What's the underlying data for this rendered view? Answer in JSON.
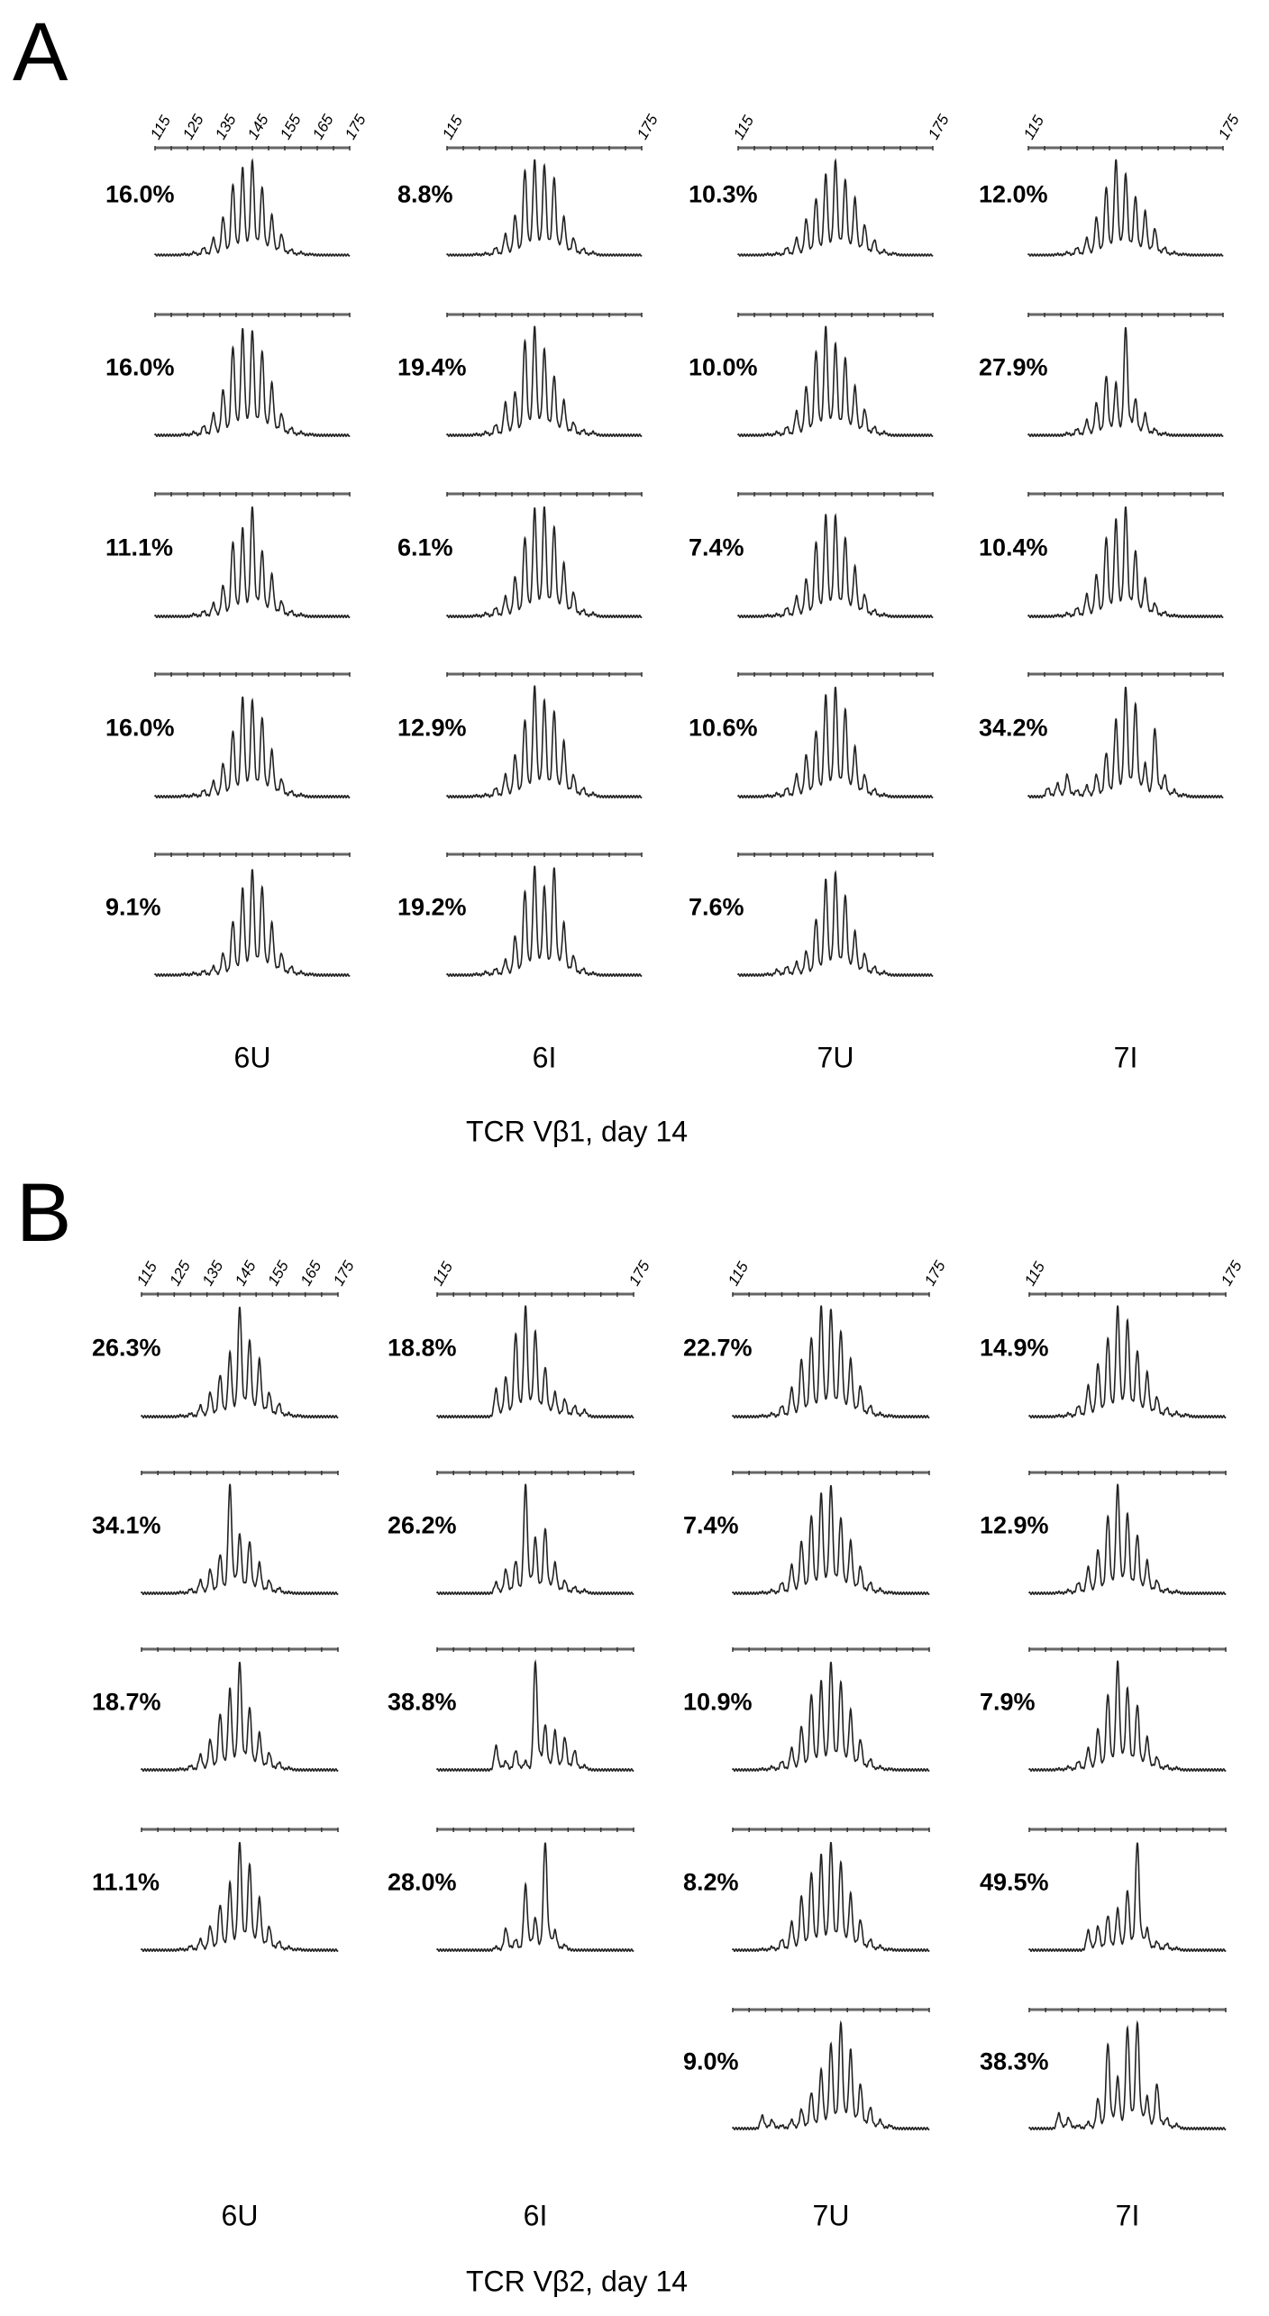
{
  "chart_data": [
    {
      "type": "line",
      "panel_letter": "A",
      "title": "TCR Vβ1, day 14",
      "x_ticks": [
        "115",
        "125",
        "135",
        "145",
        "155",
        "165",
        "175"
      ],
      "x_ticks_short": [
        "115",
        "175"
      ],
      "xlim": [
        115,
        175
      ],
      "peak_positions": [
        121,
        124,
        127,
        130,
        133,
        136,
        139,
        142,
        145,
        148,
        151,
        154,
        157,
        160,
        163,
        166,
        169
      ],
      "columns": [
        {
          "label": "6U",
          "rows": [
            {
              "pct": "16.0%",
              "peaks": [
                0,
                1,
                3,
                8,
                18,
                40,
                75,
                92,
                100,
                72,
                42,
                22,
                6,
                3,
                1,
                0,
                0
              ]
            },
            {
              "pct": "16.0%",
              "peaks": [
                0,
                1,
                3,
                9,
                20,
                42,
                82,
                98,
                97,
                78,
                48,
                20,
                7,
                3,
                1,
                0,
                0
              ]
            },
            {
              "pct": "11.1%",
              "peaks": [
                0,
                0,
                2,
                5,
                12,
                28,
                68,
                80,
                100,
                60,
                38,
                14,
                5,
                2,
                0,
                0,
                0
              ]
            },
            {
              "pct": "16.0%",
              "peaks": [
                0,
                1,
                2,
                6,
                14,
                30,
                60,
                90,
                88,
                72,
                42,
                16,
                5,
                2,
                0,
                0,
                0
              ]
            },
            {
              "pct": "9.1%",
              "peaks": [
                0,
                1,
                2,
                4,
                8,
                20,
                50,
                80,
                98,
                82,
                48,
                20,
                8,
                3,
                1,
                0,
                0
              ]
            }
          ]
        },
        {
          "label": "6I",
          "rows": [
            {
              "pct": "8.8%",
              "peaks": [
                0,
                1,
                2,
                8,
                22,
                42,
                90,
                100,
                95,
                82,
                40,
                18,
                7,
                3,
                0,
                0,
                0
              ]
            },
            {
              "pct": "19.4%",
              "peaks": [
                0,
                1,
                3,
                10,
                30,
                40,
                88,
                100,
                80,
                55,
                32,
                12,
                5,
                3,
                0,
                0,
                0
              ]
            },
            {
              "pct": "6.1%",
              "peaks": [
                0,
                1,
                3,
                8,
                18,
                36,
                72,
                98,
                100,
                82,
                48,
                22,
                6,
                3,
                0,
                0,
                0
              ]
            },
            {
              "pct": "12.9%",
              "peaks": [
                0,
                1,
                2,
                8,
                20,
                38,
                70,
                100,
                88,
                78,
                50,
                20,
                8,
                3,
                0,
                0,
                0
              ]
            },
            {
              "pct": "19.2%",
              "peaks": [
                0,
                1,
                3,
                6,
                14,
                36,
                78,
                100,
                82,
                100,
                48,
                18,
                6,
                2,
                0,
                0,
                0
              ]
            }
          ]
        },
        {
          "label": "7U",
          "rows": [
            {
              "pct": "10.3%",
              "peaks": [
                0,
                1,
                2,
                8,
                18,
                38,
                60,
                85,
                100,
                80,
                60,
                32,
                16,
                5,
                2,
                0,
                0
              ]
            },
            {
              "pct": "10.0%",
              "peaks": [
                0,
                1,
                3,
                8,
                22,
                45,
                78,
                100,
                85,
                72,
                45,
                24,
                8,
                3,
                0,
                0,
                0
              ]
            },
            {
              "pct": "7.4%",
              "peaks": [
                0,
                1,
                2,
                8,
                18,
                34,
                68,
                92,
                92,
                72,
                45,
                20,
                6,
                2,
                0,
                0,
                0
              ]
            },
            {
              "pct": "10.6%",
              "peaks": [
                0,
                1,
                3,
                8,
                20,
                38,
                60,
                92,
                100,
                80,
                45,
                20,
                7,
                2,
                0,
                0,
                0
              ]
            },
            {
              "pct": "7.6%",
              "peaks": [
                0,
                1,
                5,
                8,
                12,
                22,
                52,
                88,
                95,
                74,
                40,
                20,
                8,
                3,
                0,
                0,
                0
              ]
            }
          ]
        },
        {
          "label": "7I",
          "rows": [
            {
              "pct": "12.0%",
              "peaks": [
                0,
                1,
                3,
                8,
                18,
                40,
                72,
                100,
                86,
                62,
                46,
                28,
                8,
                3,
                1,
                0,
                0
              ]
            },
            {
              "pct": "27.9%",
              "peaks": [
                0,
                0,
                2,
                6,
                14,
                30,
                55,
                48,
                100,
                34,
                20,
                6,
                2,
                0,
                0,
                0,
                0
              ]
            },
            {
              "pct": "10.4%",
              "peaks": [
                0,
                1,
                3,
                8,
                20,
                38,
                72,
                88,
                100,
                60,
                34,
                12,
                4,
                1,
                0,
                0,
                0
              ]
            },
            {
              "pct": "34.2%",
              "peaks": [
                8,
                12,
                20,
                6,
                10,
                20,
                40,
                70,
                100,
                85,
                30,
                62,
                20,
                6,
                2,
                0,
                0
              ]
            }
          ]
        }
      ]
    },
    {
      "type": "line",
      "panel_letter": "B",
      "title": "TCR Vβ2, day 14",
      "x_ticks": [
        "115",
        "125",
        "135",
        "145",
        "155",
        "165",
        "175"
      ],
      "x_ticks_short": [
        "115",
        "175"
      ],
      "xlim": [
        115,
        175
      ],
      "peak_positions": [
        121,
        124,
        127,
        130,
        133,
        136,
        139,
        142,
        145,
        148,
        151,
        154,
        157,
        160,
        163,
        166,
        169
      ],
      "columns": [
        {
          "label": "6U",
          "rows": [
            {
              "pct": "26.3%",
              "peaks": [
                0,
                0,
                1,
                3,
                10,
                22,
                38,
                58,
                100,
                70,
                52,
                22,
                12,
                3,
                1,
                0,
                0
              ]
            },
            {
              "pct": "34.1%",
              "peaks": [
                0,
                0,
                1,
                4,
                12,
                22,
                36,
                100,
                55,
                48,
                28,
                12,
                5,
                1,
                0,
                0,
                0
              ]
            },
            {
              "pct": "18.7%",
              "peaks": [
                0,
                0,
                1,
                4,
                14,
                28,
                52,
                75,
                100,
                58,
                34,
                16,
                7,
                2,
                0,
                0,
                0
              ]
            },
            {
              "pct": "11.1%",
              "peaks": [
                0,
                0,
                1,
                4,
                10,
                22,
                42,
                62,
                100,
                80,
                48,
                22,
                8,
                3,
                1,
                0,
                0
              ]
            }
          ]
        },
        {
          "label": "6I",
          "rows": [
            {
              "pct": "18.8%",
              "peaks": [
                0,
                0,
                0,
                0,
                25,
                36,
                76,
                100,
                78,
                45,
                22,
                16,
                10,
                6,
                0,
                0,
                0
              ]
            },
            {
              "pct": "26.2%",
              "peaks": [
                0,
                0,
                0,
                0,
                10,
                22,
                30,
                100,
                52,
                60,
                28,
                12,
                6,
                3,
                0,
                0,
                0
              ]
            },
            {
              "pct": "38.8%",
              "peaks": [
                0,
                0,
                0,
                0,
                22,
                8,
                18,
                8,
                100,
                42,
                36,
                30,
                18,
                4,
                0,
                0,
                0
              ]
            },
            {
              "pct": "28.0%",
              "peaks": [
                0,
                0,
                0,
                0,
                3,
                20,
                10,
                60,
                30,
                100,
                18,
                5,
                0,
                0,
                0,
                0,
                0
              ]
            }
          ]
        },
        {
          "label": "7U",
          "rows": [
            {
              "pct": "22.7%",
              "peaks": [
                0,
                1,
                3,
                10,
                26,
                52,
                72,
                100,
                98,
                78,
                52,
                28,
                10,
                3,
                1,
                0,
                0
              ]
            },
            {
              "pct": "7.4%",
              "peaks": [
                0,
                1,
                3,
                10,
                26,
                48,
                72,
                92,
                100,
                70,
                48,
                25,
                10,
                4,
                1,
                0,
                0
              ]
            },
            {
              "pct": "10.9%",
              "peaks": [
                0,
                1,
                3,
                8,
                20,
                40,
                70,
                82,
                100,
                82,
                55,
                28,
                10,
                3,
                1,
                0,
                0
              ]
            },
            {
              "pct": "8.2%",
              "peaks": [
                0,
                1,
                3,
                10,
                26,
                50,
                72,
                88,
                100,
                82,
                52,
                28,
                10,
                4,
                1,
                0,
                0
              ]
            },
            {
              "pct": "9.0%",
              "peaks": [
                0,
                12,
                8,
                3,
                8,
                18,
                34,
                55,
                80,
                100,
                74,
                42,
                20,
                8,
                3,
                0,
                0
              ]
            }
          ]
        },
        {
          "label": "7I",
          "rows": [
            {
              "pct": "14.9%",
              "peaks": [
                0,
                1,
                3,
                10,
                28,
                48,
                72,
                100,
                88,
                60,
                40,
                18,
                8,
                4,
                2,
                0,
                0
              ]
            },
            {
              "pct": "12.9%",
              "peaks": [
                0,
                1,
                3,
                10,
                24,
                40,
                72,
                100,
                74,
                54,
                30,
                12,
                4,
                2,
                0,
                0,
                0
              ]
            },
            {
              "pct": "7.9%",
              "peaks": [
                0,
                1,
                3,
                8,
                20,
                38,
                70,
                100,
                76,
                60,
                30,
                12,
                4,
                2,
                0,
                0,
                0
              ]
            },
            {
              "pct": "49.5%",
              "peaks": [
                0,
                0,
                0,
                0,
                18,
                22,
                32,
                38,
                55,
                100,
                20,
                8,
                6,
                2,
                0,
                0,
                0
              ]
            },
            {
              "pct": "38.3%",
              "peaks": [
                0,
                14,
                10,
                3,
                6,
                28,
                80,
                48,
                95,
                100,
                30,
                42,
                10,
                4,
                0,
                0,
                0
              ]
            }
          ]
        }
      ]
    }
  ]
}
